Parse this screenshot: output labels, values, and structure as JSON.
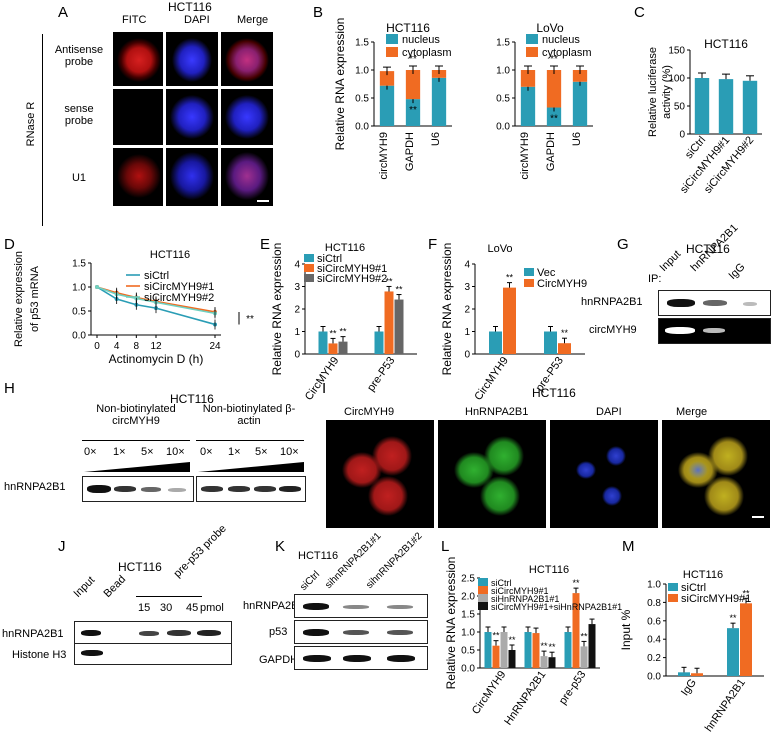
{
  "panels": {
    "A": {
      "letter": "A",
      "title": "HCT116",
      "cols": [
        "FITC",
        "DAPI",
        "Merge"
      ],
      "rows": [
        "Antisense probe",
        "sense probe",
        "U1"
      ],
      "side": "RNase R"
    },
    "B": {
      "letter": "B",
      "ylabel": "Relative RNA expression"
    },
    "C": {
      "letter": "C"
    },
    "D": {
      "letter": "D"
    },
    "E": {
      "letter": "E"
    },
    "F": {
      "letter": "F"
    },
    "G": {
      "letter": "G",
      "title": "HCT116",
      "lanes": [
        "Input",
        "hnRNPA2B1",
        "IgG"
      ],
      "ip": "IP:",
      "rows": [
        "hnRNPA2B1",
        "circMYH9"
      ]
    },
    "H": {
      "letter": "H",
      "title": "HCT116",
      "group1": "Non-biotinylated circMYH9",
      "group2": "Non-biotinylated β-actin",
      "doses": [
        "0×",
        "1×",
        "5×",
        "10×"
      ],
      "row": "hnRNPA2B1"
    },
    "I": {
      "letter": "I",
      "title": "HCT116",
      "cols": [
        "CircMYH9",
        "HnRNPA2B1",
        "DAPI",
        "Merge"
      ]
    },
    "J": {
      "letter": "J",
      "title": "HCT116",
      "lanes": [
        "Input",
        "Bead",
        "pre-p53 probe"
      ],
      "pmol": [
        "15",
        "30",
        "45"
      ],
      "unit": "pmol",
      "rows": [
        "hnRNPA2B1",
        "Histone H3"
      ]
    },
    "K": {
      "letter": "K",
      "title": "HCT116",
      "lanes": [
        "siCtrl",
        "sihnRNPA2B1#1",
        "sihnRNPA2B1#2"
      ],
      "rows": [
        "hnRNPA2B1",
        "p53",
        "GAPDH"
      ]
    },
    "L": {
      "letter": "L"
    },
    "M": {
      "letter": "M"
    }
  },
  "chart_data": [
    {
      "id": "B1",
      "type": "bar",
      "stacked": true,
      "title": "HCT116",
      "ylabel": "Relative RNA expression",
      "categories": [
        "circMYH9",
        "GAPDH",
        "U6"
      ],
      "series": [
        {
          "name": "nucleus",
          "color": "#2a9db5",
          "values": [
            0.72,
            0.48,
            0.86
          ]
        },
        {
          "name": "cytoplasm",
          "color": "#f06b22",
          "values": [
            0.26,
            0.52,
            0.14
          ]
        }
      ],
      "ylim": [
        0,
        1.5
      ],
      "yticks": [
        "0.0",
        "0.5",
        "1.0",
        "1.5"
      ],
      "annotations": [
        {
          "cat": "GAPDH",
          "text": "**"
        },
        {
          "cat": "GAPDH",
          "text": "**"
        }
      ]
    },
    {
      "id": "B2",
      "type": "bar",
      "stacked": true,
      "title": "LoVo",
      "categories": [
        "circMYH9",
        "GAPDH",
        "U6"
      ],
      "series": [
        {
          "name": "nucleus",
          "color": "#2a9db5",
          "values": [
            0.7,
            0.33,
            0.79
          ]
        },
        {
          "name": "cytoplasm",
          "color": "#f06b22",
          "values": [
            0.3,
            0.67,
            0.21
          ]
        }
      ],
      "ylim": [
        0,
        1.5
      ],
      "yticks": [
        "0.0",
        "0.5",
        "1.0",
        "1.5"
      ],
      "annotations": [
        {
          "cat": "GAPDH",
          "text": "**"
        },
        {
          "cat": "GAPDH",
          "text": "**"
        }
      ]
    },
    {
      "id": "C",
      "type": "bar",
      "title": "HCT116",
      "ylabel": "Relative luciferase activity (%)",
      "categories": [
        "siCtrl",
        "siCircMYH9#1",
        "siCircMYH9#2"
      ],
      "series": [
        {
          "color": "#2a9db5",
          "values": [
            100,
            98,
            95
          ]
        }
      ],
      "ylim": [
        0,
        150
      ],
      "yticks": [
        "0",
        "50",
        "100",
        "150"
      ]
    },
    {
      "id": "D",
      "type": "line",
      "title": "HCT116",
      "ylabel": "Relative expression of p53 mRNA",
      "xlabel": "Actinomycin D (h)",
      "x": [
        0,
        4,
        8,
        12,
        24
      ],
      "xticks": [
        "0",
        "4",
        "8",
        "12",
        "24"
      ],
      "yticks": [
        "0.0",
        "0.5",
        "1.0",
        "1.5"
      ],
      "ylim": [
        0,
        1.5
      ],
      "series": [
        {
          "name": "siCtrl",
          "color": "#2a9db5",
          "values": [
            1.0,
            0.75,
            0.63,
            0.56,
            0.22
          ]
        },
        {
          "name": "siCircMYH9#1",
          "color": "#f06b22",
          "values": [
            1.0,
            0.88,
            0.78,
            0.7,
            0.48
          ]
        },
        {
          "name": "siCircMYH9#2",
          "color": "#6fd1c1",
          "values": [
            1.0,
            0.85,
            0.76,
            0.68,
            0.45
          ]
        }
      ],
      "annotation": "**"
    },
    {
      "id": "E",
      "type": "bar",
      "title": "HCT116",
      "ylabel": "Relative RNA expression",
      "categories": [
        "CircMYH9",
        "pre-P53"
      ],
      "series": [
        {
          "name": "siCtrl",
          "color": "#2a9db5",
          "values": [
            1.0,
            1.0
          ]
        },
        {
          "name": "siCircMYH9#1",
          "color": "#f06b22",
          "values": [
            0.47,
            2.78
          ]
        },
        {
          "name": "siCircMYH9#2",
          "color": "#666666",
          "values": [
            0.55,
            2.42
          ]
        }
      ],
      "ylim": [
        0,
        4
      ],
      "yticks": [
        "0",
        "1",
        "2",
        "3",
        "4"
      ],
      "stars": [
        [
          "",
          "**",
          "**"
        ],
        [
          "",
          "**",
          "**"
        ]
      ]
    },
    {
      "id": "F",
      "type": "bar",
      "title": "LoVo",
      "ylabel": "Relative RNA expression",
      "categories": [
        "CircMYH9",
        "pre-P53"
      ],
      "series": [
        {
          "name": "Vec",
          "color": "#2a9db5",
          "values": [
            1.0,
            1.0
          ]
        },
        {
          "name": "CircMYH9",
          "color": "#f06b22",
          "values": [
            2.95,
            0.48
          ]
        }
      ],
      "ylim": [
        0,
        4
      ],
      "yticks": [
        "0",
        "1",
        "2",
        "3",
        "4"
      ],
      "stars": [
        [
          "",
          "**"
        ],
        [
          "",
          "**"
        ]
      ]
    },
    {
      "id": "L",
      "type": "bar",
      "title": "HCT116",
      "ylabel": "Relative RNA expression",
      "categories": [
        "CircMYH9",
        "HnRNPA2B1",
        "pre-p53"
      ],
      "series": [
        {
          "name": "siCtrl",
          "color": "#2a9db5",
          "values": [
            1.0,
            1.0,
            1.0
          ]
        },
        {
          "name": "siCircMYH9#1",
          "color": "#f06b22",
          "values": [
            0.62,
            0.97,
            2.08
          ]
        },
        {
          "name": "siHnRNPA2B1#1",
          "color": "#aaaaaa",
          "values": [
            1.0,
            0.33,
            0.6
          ]
        },
        {
          "name": "siCircMYH9#1+siHnRNPA2B1#1",
          "color": "#111111",
          "values": [
            0.5,
            0.3,
            1.22
          ]
        }
      ],
      "ylim": [
        0,
        2.5
      ],
      "yticks": [
        "0.0",
        "0.5",
        "1.0",
        "1.5",
        "2.0",
        "2.5"
      ],
      "stars": [
        [
          "",
          "**",
          "",
          "**"
        ],
        [
          "",
          "",
          "**",
          "**"
        ],
        [
          "",
          "**",
          "**",
          ""
        ]
      ]
    },
    {
      "id": "M",
      "type": "bar",
      "title": "HCT116",
      "ylabel": "Input %",
      "categories": [
        "IgG",
        "hnRNPA2B1"
      ],
      "series": [
        {
          "name": "siCtrl",
          "color": "#2a9db5",
          "values": [
            0.04,
            0.52
          ]
        },
        {
          "name": "siCircMYH9#1",
          "color": "#f06b22",
          "values": [
            0.03,
            0.79
          ]
        }
      ],
      "ylim": [
        0,
        1.0
      ],
      "yticks": [
        "0.0",
        "0.2",
        "0.4",
        "0.6",
        "0.8",
        "1.0"
      ],
      "stars": [
        [
          "",
          ""
        ],
        [
          "**",
          "**"
        ]
      ]
    }
  ]
}
